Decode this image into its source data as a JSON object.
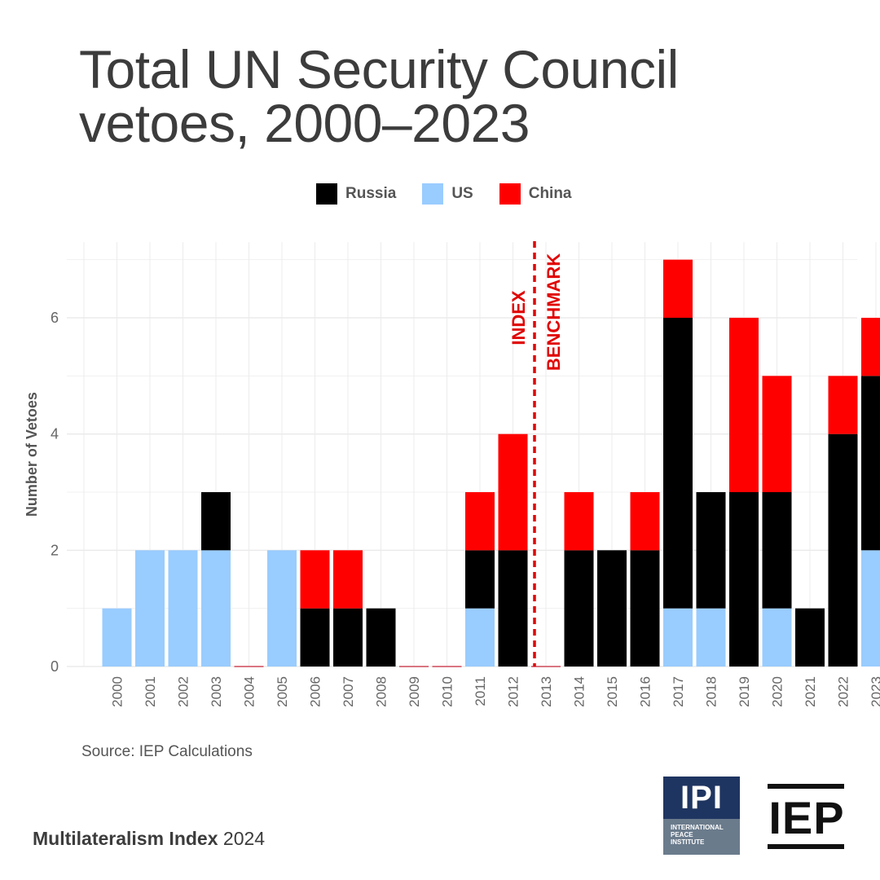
{
  "title_line1": "Total UN Security Council",
  "title_line2": "vetoes, 2000–2023",
  "source": "Source: IEP Calculations",
  "footer": {
    "name": "Multilateralism Index",
    "year": "2024"
  },
  "logos": {
    "ipi": {
      "abbr": "IPI",
      "line1": "INTERNATIONAL",
      "line2": "PEACE",
      "line3": "INSTITUTE"
    },
    "iep": {
      "abbr": "IEP"
    }
  },
  "chart_data": {
    "type": "bar",
    "stacked": true,
    "title": "Total UN Security Council vetoes, 2000–2023",
    "ylabel": "Number of Vetoes",
    "xlabel": "",
    "ylim": [
      0,
      7.3
    ],
    "yticks": [
      0,
      2,
      4,
      6
    ],
    "grid": true,
    "legend": "top",
    "categories": [
      "2000",
      "2001",
      "2002",
      "2003",
      "2004",
      "2005",
      "2006",
      "2007",
      "2008",
      "2009",
      "2010",
      "2011",
      "2012",
      "2013",
      "2014",
      "2015",
      "2016",
      "2017",
      "2018",
      "2019",
      "2020",
      "2021",
      "2022",
      "2023"
    ],
    "series": [
      {
        "name": "US",
        "color": "#99ccff",
        "values": [
          1,
          2,
          2,
          2,
          0,
          2,
          0,
          0,
          0,
          0,
          0,
          1,
          0,
          0,
          0,
          0,
          0,
          1,
          1,
          0,
          1,
          0,
          0,
          2
        ]
      },
      {
        "name": "Russia",
        "color": "#000000",
        "values": [
          0,
          0,
          0,
          1,
          0,
          0,
          1,
          1,
          1,
          0,
          0,
          1,
          2,
          0,
          2,
          2,
          2,
          5,
          2,
          3,
          2,
          1,
          4,
          3
        ]
      },
      {
        "name": "China",
        "color": "#ff0000",
        "values": [
          0,
          0,
          0,
          0,
          0,
          0,
          1,
          1,
          0,
          0,
          0,
          1,
          2,
          0,
          1,
          0,
          1,
          1,
          0,
          3,
          2,
          0,
          1,
          1
        ]
      }
    ],
    "legend_order": [
      "Russia",
      "US",
      "China"
    ],
    "annotation": {
      "after_category": "2012",
      "left_label": "INDEX",
      "right_label": "BENCHMARK",
      "color": "#e00000"
    }
  }
}
